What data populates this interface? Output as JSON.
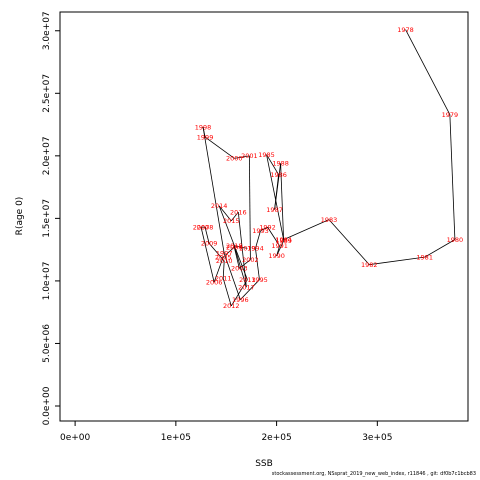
{
  "chart_data": {
    "type": "line",
    "xlabel": "SSB",
    "ylabel": "R(age 0)",
    "xlim": [
      -15000,
      390000
    ],
    "ylim": [
      -1200000,
      31500000
    ],
    "x_ticks": [
      0,
      100000,
      200000,
      300000
    ],
    "x_tick_labels": [
      "0e+00",
      "1e+05",
      "2e+05",
      "3e+05"
    ],
    "y_ticks": [
      0,
      5000000,
      10000000,
      15000000,
      20000000,
      25000000,
      30000000
    ],
    "y_tick_labels": [
      "0.0e+00",
      "5.0e+06",
      "1.0e+07",
      "1.5e+07",
      "2.0e+07",
      "2.5e+07",
      "3.0e+07"
    ],
    "line_color": "#000000",
    "label_color": "#ff0000",
    "points": [
      {
        "year": "1978",
        "x": 328000,
        "y": 30100000
      },
      {
        "year": "1979",
        "x": 372000,
        "y": 23300000
      },
      {
        "year": "1980",
        "x": 377000,
        "y": 13300000
      },
      {
        "year": "1981",
        "x": 347000,
        "y": 11900000
      },
      {
        "year": "1982",
        "x": 292000,
        "y": 11300000
      },
      {
        "year": "1983",
        "x": 252000,
        "y": 14900000
      },
      {
        "year": "1984",
        "x": 207000,
        "y": 13300000
      },
      {
        "year": "1985",
        "x": 190000,
        "y": 20100000
      },
      {
        "year": "1986",
        "x": 202000,
        "y": 18500000
      },
      {
        "year": "1987",
        "x": 198000,
        "y": 15700000
      },
      {
        "year": "1988",
        "x": 204000,
        "y": 19400000
      },
      {
        "year": "1989",
        "x": 207000,
        "y": 13200000
      },
      {
        "year": "1990",
        "x": 200000,
        "y": 12000000
      },
      {
        "year": "1991",
        "x": 203000,
        "y": 12800000
      },
      {
        "year": "1992",
        "x": 191000,
        "y": 14300000
      },
      {
        "year": "1993",
        "x": 184000,
        "y": 14000000
      },
      {
        "year": "1994",
        "x": 179000,
        "y": 12600000
      },
      {
        "year": "1995",
        "x": 183000,
        "y": 10100000
      },
      {
        "year": "1996",
        "x": 164000,
        "y": 8500000
      },
      {
        "year": "1997",
        "x": 148000,
        "y": 12200000
      },
      {
        "year": "1998",
        "x": 127000,
        "y": 22300000
      },
      {
        "year": "1999",
        "x": 129000,
        "y": 21500000
      },
      {
        "year": "2000",
        "x": 158000,
        "y": 19800000
      },
      {
        "year": "2001",
        "x": 173000,
        "y": 20000000
      },
      {
        "year": "2002",
        "x": 174000,
        "y": 11700000
      },
      {
        "year": "2003",
        "x": 163000,
        "y": 11000000
      },
      {
        "year": "2004",
        "x": 158000,
        "y": 12700000
      },
      {
        "year": "2005",
        "x": 147000,
        "y": 11900000
      },
      {
        "year": "2006",
        "x": 138000,
        "y": 9900000
      },
      {
        "year": "2007",
        "x": 125000,
        "y": 14300000
      },
      {
        "year": "2008",
        "x": 129000,
        "y": 14300000
      },
      {
        "year": "2009",
        "x": 133000,
        "y": 13000000
      },
      {
        "year": "2010",
        "x": 148000,
        "y": 11600000
      },
      {
        "year": "2011",
        "x": 147000,
        "y": 10200000
      },
      {
        "year": "2012",
        "x": 155000,
        "y": 8000000
      },
      {
        "year": "2013",
        "x": 171000,
        "y": 10100000
      },
      {
        "year": "2014",
        "x": 143000,
        "y": 16000000
      },
      {
        "year": "2015",
        "x": 155000,
        "y": 14800000
      },
      {
        "year": "2016",
        "x": 162000,
        "y": 15500000
      },
      {
        "year": "2017",
        "x": 170000,
        "y": 9500000
      },
      {
        "year": "2018",
        "x": 158000,
        "y": 12800000
      },
      {
        "year": "2019",
        "x": 171000,
        "y": 12600000
      }
    ]
  },
  "footer": {
    "credit": "stockassessment.org, NSsprat_2019_new_web_index, r11846 , git: df0b7c1bcb83"
  }
}
